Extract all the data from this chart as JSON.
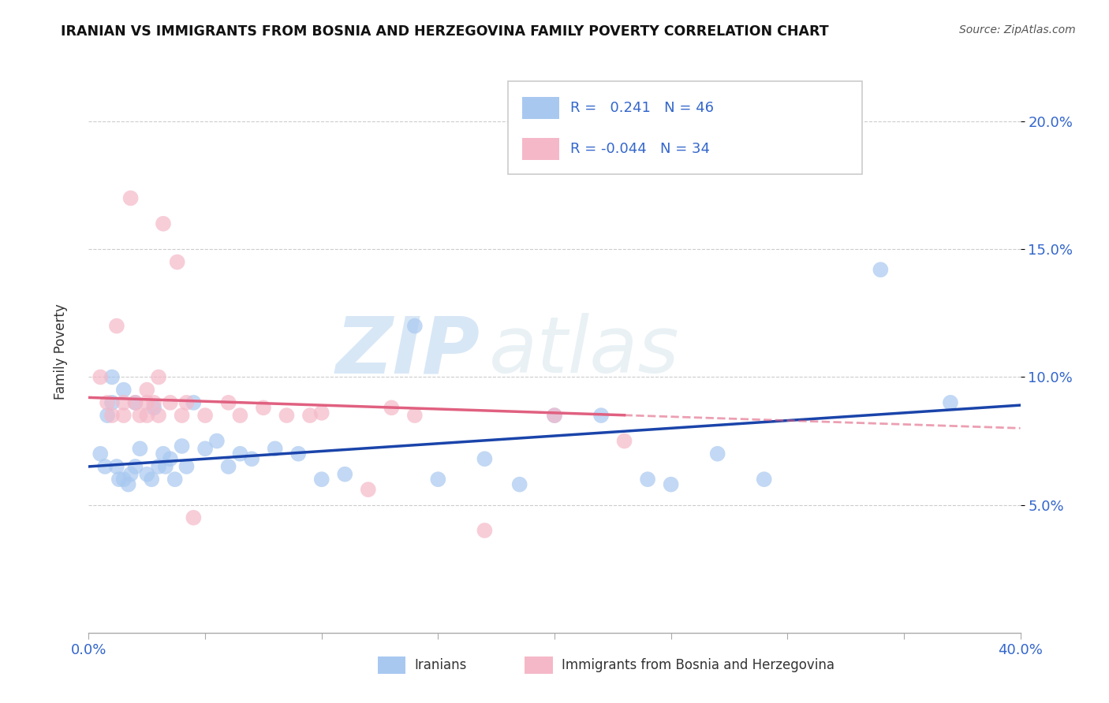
{
  "title": "IRANIAN VS IMMIGRANTS FROM BOSNIA AND HERZEGOVINA FAMILY POVERTY CORRELATION CHART",
  "source": "Source: ZipAtlas.com",
  "ylabel": "Family Poverty",
  "yticks": [
    0.05,
    0.1,
    0.15,
    0.2
  ],
  "ytick_labels": [
    "5.0%",
    "10.0%",
    "15.0%",
    "20.0%"
  ],
  "xlim": [
    0.0,
    0.4
  ],
  "ylim": [
    0.0,
    0.22
  ],
  "r_iranian": 0.241,
  "n_iranian": 46,
  "r_bosnia": -0.044,
  "n_bosnia": 34,
  "color_iranian": "#a8c8f0",
  "color_bosnia": "#f5b8c8",
  "line_color_iranian": "#1a44aa",
  "line_color_bosnia": "#e06080",
  "watermark_zip": "ZIP",
  "watermark_atlas": "atlas",
  "iranian_x": [
    0.005,
    0.007,
    0.008,
    0.01,
    0.01,
    0.012,
    0.013,
    0.015,
    0.015,
    0.017,
    0.018,
    0.02,
    0.02,
    0.022,
    0.025,
    0.027,
    0.028,
    0.03,
    0.032,
    0.033,
    0.035,
    0.037,
    0.04,
    0.042,
    0.045,
    0.05,
    0.055,
    0.06,
    0.065,
    0.07,
    0.08,
    0.09,
    0.1,
    0.11,
    0.14,
    0.15,
    0.17,
    0.185,
    0.2,
    0.22,
    0.24,
    0.25,
    0.27,
    0.29,
    0.34,
    0.37
  ],
  "iranian_y": [
    0.07,
    0.065,
    0.085,
    0.1,
    0.09,
    0.065,
    0.06,
    0.095,
    0.06,
    0.058,
    0.062,
    0.065,
    0.09,
    0.072,
    0.062,
    0.06,
    0.088,
    0.065,
    0.07,
    0.065,
    0.068,
    0.06,
    0.073,
    0.065,
    0.09,
    0.072,
    0.075,
    0.065,
    0.07,
    0.068,
    0.072,
    0.07,
    0.06,
    0.062,
    0.12,
    0.06,
    0.068,
    0.058,
    0.085,
    0.085,
    0.06,
    0.058,
    0.07,
    0.06,
    0.142,
    0.09
  ],
  "bosnia_x": [
    0.005,
    0.008,
    0.01,
    0.012,
    0.015,
    0.015,
    0.018,
    0.02,
    0.022,
    0.025,
    0.025,
    0.025,
    0.028,
    0.03,
    0.03,
    0.032,
    0.035,
    0.038,
    0.04,
    0.042,
    0.045,
    0.05,
    0.06,
    0.065,
    0.075,
    0.085,
    0.095,
    0.1,
    0.12,
    0.13,
    0.14,
    0.17,
    0.2,
    0.23
  ],
  "bosnia_y": [
    0.1,
    0.09,
    0.085,
    0.12,
    0.09,
    0.085,
    0.17,
    0.09,
    0.085,
    0.095,
    0.09,
    0.085,
    0.09,
    0.1,
    0.085,
    0.16,
    0.09,
    0.145,
    0.085,
    0.09,
    0.045,
    0.085,
    0.09,
    0.085,
    0.088,
    0.085,
    0.085,
    0.086,
    0.056,
    0.088,
    0.085,
    0.04,
    0.085,
    0.075
  ]
}
